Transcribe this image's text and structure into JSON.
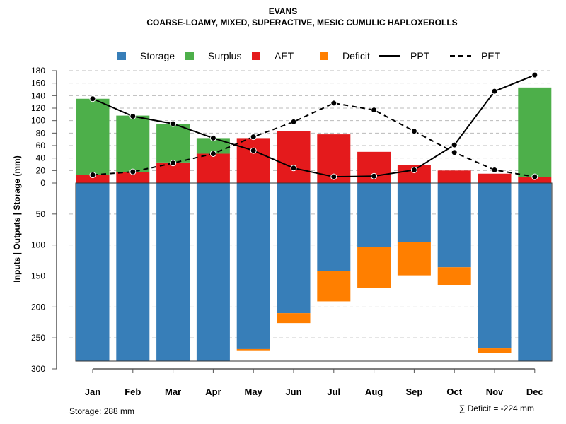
{
  "chart_data": {
    "type": "bar",
    "title": "EVANS",
    "subtitle": "COARSE-LOAMY, MIXED, SUPERACTIVE, MESIC CUMULIC HAPLOXEROLLS",
    "ylabel": "Inputs | Outputs | Storage    (mm)",
    "categories": [
      "Jan",
      "Feb",
      "Mar",
      "Apr",
      "May",
      "Jun",
      "Jul",
      "Aug",
      "Sep",
      "Oct",
      "Nov",
      "Dec"
    ],
    "upper_ticks": [
      "0",
      "20",
      "40",
      "60",
      "80",
      "100",
      "120",
      "140",
      "160",
      "180"
    ],
    "lower_ticks": [
      "50",
      "100",
      "150",
      "200",
      "250",
      "300"
    ],
    "ylim_upper": [
      0,
      180
    ],
    "ylim_lower": [
      0,
      300
    ],
    "legend": [
      "Storage",
      "Surplus",
      "AET",
      "Deficit",
      "PPT",
      "PET"
    ],
    "legend_position": "top",
    "colors": {
      "Storage": "#377EB8",
      "Surplus": "#4DAF4A",
      "AET": "#E41A1C",
      "Deficit": "#FF7F00",
      "PPT": "#000000",
      "PET": "#000000"
    },
    "series": [
      {
        "name": "AET",
        "values": [
          13,
          18,
          33,
          47,
          72,
          83,
          78,
          50,
          29,
          20,
          15,
          10
        ]
      },
      {
        "name": "Surplus",
        "values": [
          122,
          90,
          62,
          25,
          0,
          0,
          0,
          0,
          0,
          0,
          0,
          143
        ]
      },
      {
        "name": "Storage",
        "values": [
          288,
          288,
          288,
          288,
          268,
          210,
          142,
          103,
          95,
          136,
          267,
          288
        ]
      },
      {
        "name": "Deficit",
        "values": [
          0,
          0,
          0,
          0,
          2,
          16,
          49,
          66,
          54,
          29,
          7,
          0
        ]
      },
      {
        "name": "PPT",
        "values": [
          135,
          107,
          95,
          72,
          52,
          24,
          10,
          11,
          21,
          61,
          147,
          173
        ]
      },
      {
        "name": "PET",
        "values": [
          13,
          18,
          32,
          47,
          74,
          98,
          128,
          117,
          83,
          49,
          21,
          10
        ]
      }
    ],
    "annotations": {
      "storage": "Storage: 288 mm",
      "deficit": "∑ Deficit = -224 mm"
    }
  }
}
